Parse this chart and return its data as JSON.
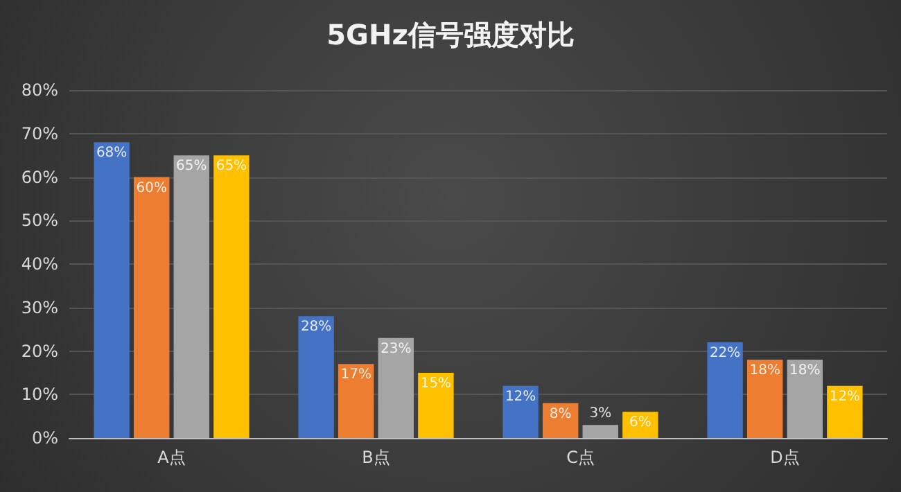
{
  "chart_data": {
    "type": "bar",
    "title": "5GHz信号强度对比",
    "categories": [
      "A点",
      "B点",
      "C点",
      "D点"
    ],
    "series": [
      {
        "color": "#4472c4",
        "values": [
          68,
          28,
          12,
          22
        ],
        "value_labels": [
          "68%",
          "28%",
          "12%",
          "22%"
        ]
      },
      {
        "color": "#ed7d31",
        "values": [
          60,
          17,
          8,
          18
        ],
        "value_labels": [
          "60%",
          "17%",
          "8%",
          "18%"
        ]
      },
      {
        "color": "#a5a5a5",
        "values": [
          65,
          23,
          3,
          18
        ],
        "value_labels": [
          "65%",
          "23%",
          "3%",
          "18%"
        ]
      },
      {
        "color": "#ffc000",
        "values": [
          65,
          15,
          6,
          12
        ],
        "value_labels": [
          "65%",
          "15%",
          "6%",
          "12%"
        ]
      }
    ],
    "ylim": [
      0,
      80
    ],
    "yticks": [
      {
        "value": 0,
        "label": "0%"
      },
      {
        "value": 10,
        "label": "10%"
      },
      {
        "value": 20,
        "label": "20%"
      },
      {
        "value": 30,
        "label": "30%"
      },
      {
        "value": 40,
        "label": "40%"
      },
      {
        "value": 50,
        "label": "50%"
      },
      {
        "value": 60,
        "label": "60%"
      },
      {
        "value": 70,
        "label": "70%"
      },
      {
        "value": 80,
        "label": "80%"
      }
    ],
    "grid": "y"
  }
}
